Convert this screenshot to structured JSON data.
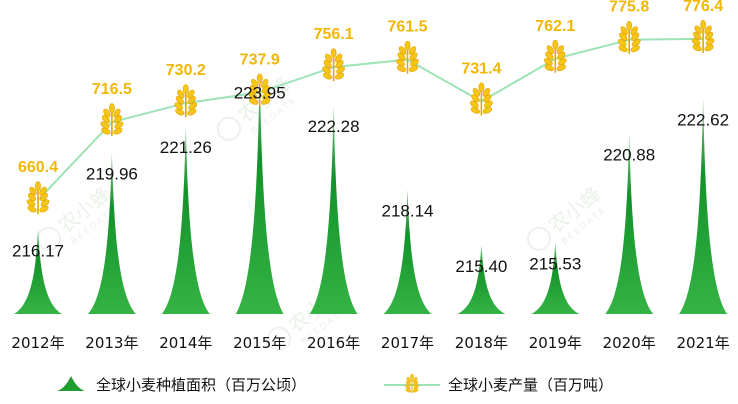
{
  "chart_data": {
    "type": "bar",
    "categories": [
      "2012年",
      "2013年",
      "2014年",
      "2015年",
      "2016年",
      "2017年",
      "2018年",
      "2019年",
      "2020年",
      "2021年"
    ],
    "series": [
      {
        "name": "全球小麦种植面积（百万公顷）",
        "kind": "bar",
        "values": [
          216.17,
          219.96,
          221.26,
          223.95,
          222.28,
          218.14,
          215.4,
          215.53,
          220.88,
          222.62
        ],
        "labels": [
          "216.17",
          "219.96",
          "221.26",
          "223.95",
          "222.28",
          "218.14",
          "215.40",
          "215.53",
          "220.88",
          "222.62"
        ],
        "color": "#1f9e2f"
      },
      {
        "name": "全球小麦产量（百万吨）",
        "kind": "line",
        "values": [
          660.4,
          716.5,
          730.2,
          737.9,
          756.1,
          761.5,
          731.4,
          762.1,
          775.8,
          776.4
        ],
        "labels": [
          "660.4",
          "716.5",
          "730.2",
          "737.9",
          "756.1",
          "761.5",
          "731.4",
          "762.1",
          "775.8",
          "776.4"
        ],
        "color": "#f2b705",
        "line_color": "#9de3b5"
      }
    ],
    "bar_ylim": [
      212,
      225
    ],
    "line_ylim": [
      600,
      790
    ],
    "legend_position": "bottom",
    "grid": false
  },
  "watermark": {
    "text": "农小蜂",
    "sub": "BEEDATA"
  }
}
